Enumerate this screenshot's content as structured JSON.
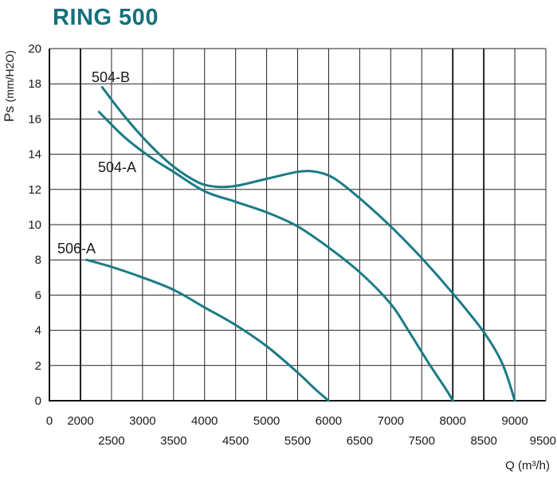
{
  "chart_data": {
    "type": "line",
    "title": "RING 500",
    "ylabel_main": "Ps",
    "ylabel_unit": "(mm/H2O)",
    "xlabel_main": "Q",
    "xlabel_unit": "(m³/h)",
    "ylim": [
      0,
      20
    ],
    "xlim": [
      0,
      9500
    ],
    "y_ticks": [
      "0",
      "2",
      "4",
      "6",
      "8",
      "10",
      "12",
      "14",
      "16",
      "18",
      "20"
    ],
    "x_ticks_upper": [
      "0",
      "2000",
      "3000",
      "4000",
      "5000",
      "6000",
      "7000",
      "8000",
      "9000"
    ],
    "x_ticks_lower": [
      "2500",
      "3500",
      "4500",
      "5500",
      "6500",
      "7500",
      "8500",
      "9500"
    ],
    "grid": true,
    "line_color": "#1a7b86",
    "series": [
      {
        "name": "504-B",
        "x": [
          2350,
          2700,
          3100,
          3500,
          3900,
          4200,
          4500,
          5000,
          5500,
          5800,
          6100,
          6500,
          7000,
          7500,
          8000,
          8500,
          8800,
          9000
        ],
        "y": [
          17.8,
          16.2,
          14.6,
          13.3,
          12.4,
          12.15,
          12.2,
          12.6,
          13.0,
          13.0,
          12.6,
          11.5,
          9.9,
          8.1,
          6.1,
          3.9,
          2.1,
          0
        ]
      },
      {
        "name": "504-A",
        "x": [
          2300,
          2700,
          3100,
          3500,
          4000,
          4500,
          5000,
          5500,
          6000,
          6500,
          7000,
          7300,
          7600,
          7900,
          8000
        ],
        "y": [
          16.4,
          15.0,
          13.9,
          13.0,
          11.9,
          11.3,
          10.7,
          9.9,
          8.7,
          7.3,
          5.5,
          3.9,
          2.2,
          0.6,
          0
        ]
      },
      {
        "name": "506-A",
        "x": [
          2100,
          2500,
          3000,
          3500,
          4000,
          4500,
          5000,
          5500,
          5800,
          6000
        ],
        "y": [
          8.0,
          7.6,
          7.0,
          6.3,
          5.3,
          4.3,
          3.1,
          1.6,
          0.6,
          0
        ]
      }
    ]
  }
}
